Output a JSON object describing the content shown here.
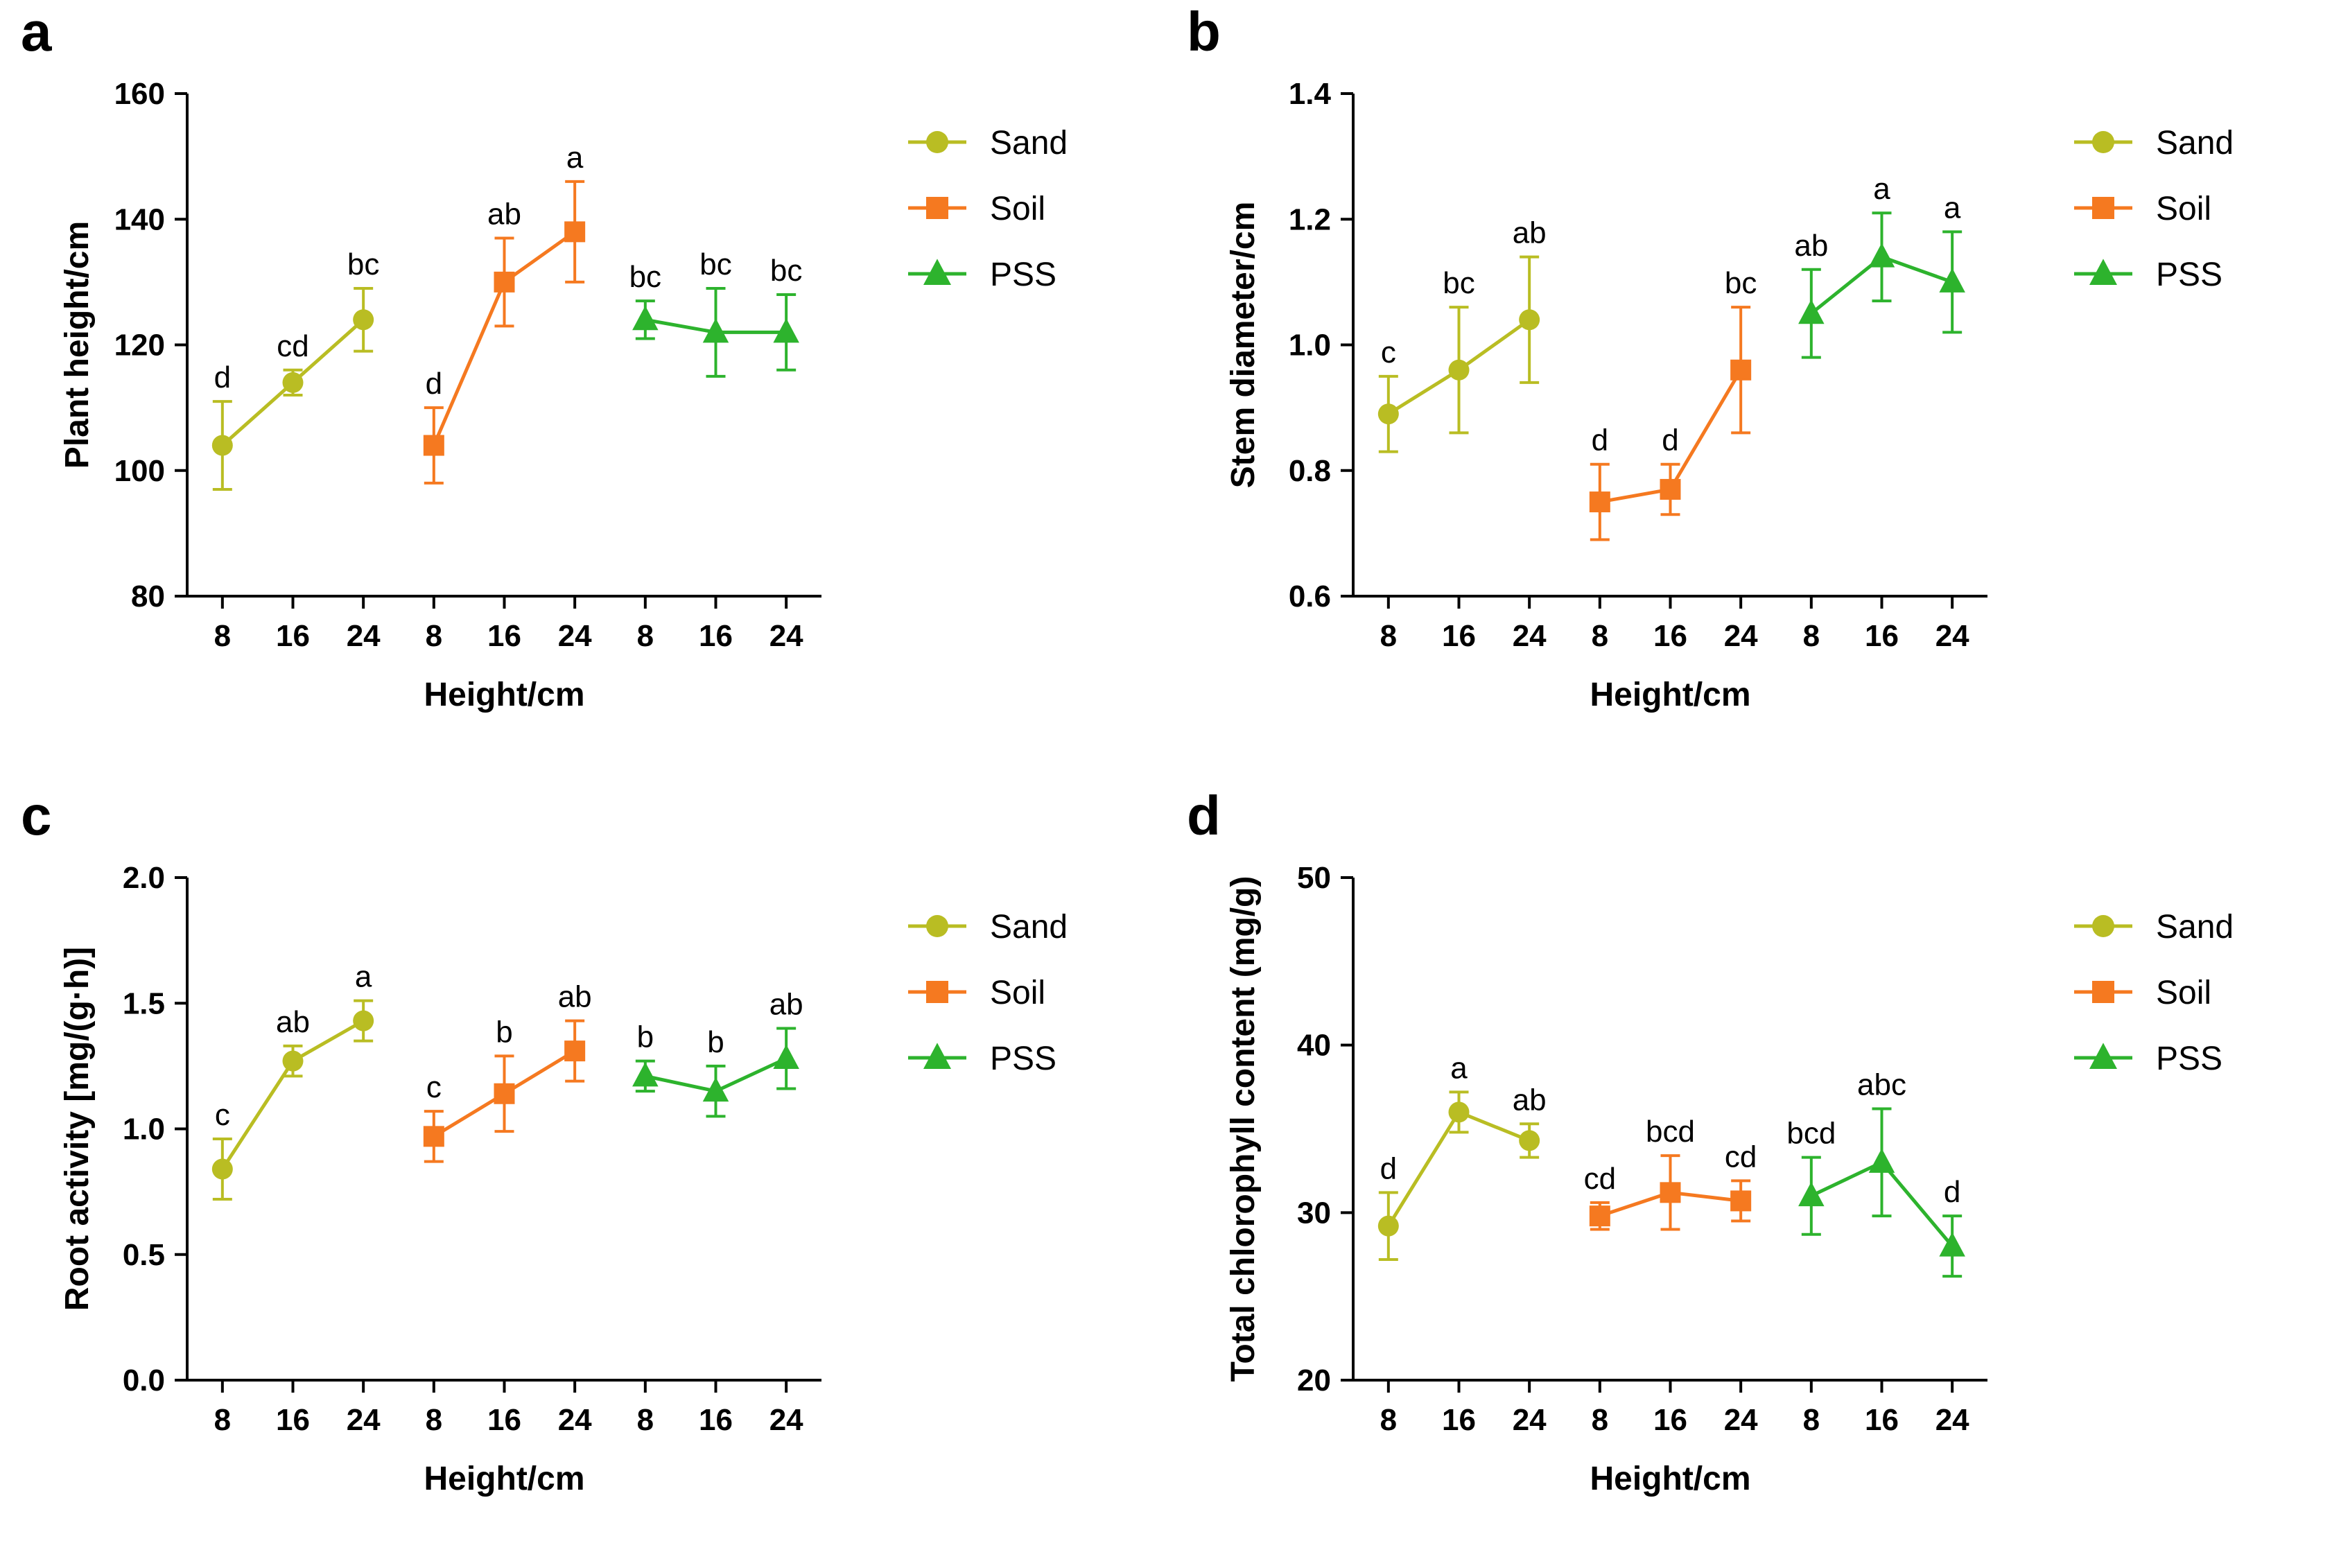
{
  "figure": {
    "background": "#ffffff",
    "legend_labels": [
      "Sand",
      "Soil",
      "PSS"
    ],
    "colors": {
      "sand": "#b9bd23",
      "soil": "#f57920",
      "pss": "#2db32d",
      "axis": "#000000"
    }
  },
  "chart_data": [
    {
      "type": "line",
      "panel_label": "a",
      "title": "",
      "xlabel": "Height/cm",
      "ylabel": "Plant height/cm",
      "ylim": [
        80,
        160
      ],
      "yticks": [
        "80",
        "100",
        "120",
        "140",
        "160"
      ],
      "categories": [
        "8",
        "16",
        "24",
        "8",
        "16",
        "24",
        "8",
        "16",
        "24"
      ],
      "legend_position": "right",
      "series": [
        {
          "name": "Sand",
          "color": "#b9bd23",
          "marker": "circle",
          "positions": [
            0,
            1,
            2
          ],
          "values": [
            104,
            114,
            124
          ],
          "errors": [
            7,
            2,
            5
          ],
          "sig": [
            "d",
            "cd",
            "bc"
          ]
        },
        {
          "name": "Soil",
          "color": "#f57920",
          "marker": "square",
          "positions": [
            3,
            4,
            5
          ],
          "values": [
            104,
            130,
            138
          ],
          "errors": [
            6,
            7,
            8
          ],
          "sig": [
            "d",
            "ab",
            "a"
          ]
        },
        {
          "name": "PSS",
          "color": "#2db32d",
          "marker": "triangle",
          "positions": [
            6,
            7,
            8
          ],
          "values": [
            124,
            122,
            122
          ],
          "errors": [
            3,
            7,
            6
          ],
          "sig": [
            "bc",
            "bc",
            "bc"
          ]
        }
      ]
    },
    {
      "type": "line",
      "panel_label": "b",
      "title": "",
      "xlabel": "Height/cm",
      "ylabel": "Stem diameter/cm",
      "ylim": [
        0.6,
        1.4
      ],
      "yticks": [
        "0.6",
        "0.8",
        "1.0",
        "1.2",
        "1.4"
      ],
      "categories": [
        "8",
        "16",
        "24",
        "8",
        "16",
        "24",
        "8",
        "16",
        "24"
      ],
      "legend_position": "right",
      "series": [
        {
          "name": "Sand",
          "color": "#b9bd23",
          "marker": "circle",
          "positions": [
            0,
            1,
            2
          ],
          "values": [
            0.89,
            0.96,
            1.04
          ],
          "errors": [
            0.06,
            0.1,
            0.1
          ],
          "sig": [
            "c",
            "bc",
            "ab"
          ]
        },
        {
          "name": "Soil",
          "color": "#f57920",
          "marker": "square",
          "positions": [
            3,
            4,
            5
          ],
          "values": [
            0.75,
            0.77,
            0.96
          ],
          "errors": [
            0.06,
            0.04,
            0.1
          ],
          "sig": [
            "d",
            "d",
            "bc"
          ]
        },
        {
          "name": "PSS",
          "color": "#2db32d",
          "marker": "triangle",
          "positions": [
            6,
            7,
            8
          ],
          "values": [
            1.05,
            1.14,
            1.1
          ],
          "errors": [
            0.07,
            0.07,
            0.08
          ],
          "sig": [
            "ab",
            "a",
            "a"
          ]
        }
      ]
    },
    {
      "type": "line",
      "panel_label": "c",
      "title": "",
      "xlabel": "Height/cm",
      "ylabel": "Root activity [mg/(g·h)]",
      "ylim": [
        0,
        2
      ],
      "yticks": [
        "0.0",
        "0.5",
        "1.0",
        "1.5",
        "2.0"
      ],
      "categories": [
        "8",
        "16",
        "24",
        "8",
        "16",
        "24",
        "8",
        "16",
        "24"
      ],
      "legend_position": "right",
      "series": [
        {
          "name": "Sand",
          "color": "#b9bd23",
          "marker": "circle",
          "positions": [
            0,
            1,
            2
          ],
          "values": [
            0.84,
            1.27,
            1.43
          ],
          "errors": [
            0.12,
            0.06,
            0.08
          ],
          "sig": [
            "c",
            "ab",
            "a"
          ]
        },
        {
          "name": "Soil",
          "color": "#f57920",
          "marker": "square",
          "positions": [
            3,
            4,
            5
          ],
          "values": [
            0.97,
            1.14,
            1.31
          ],
          "errors": [
            0.1,
            0.15,
            0.12
          ],
          "sig": [
            "c",
            "b",
            "ab"
          ]
        },
        {
          "name": "PSS",
          "color": "#2db32d",
          "marker": "triangle",
          "positions": [
            6,
            7,
            8
          ],
          "values": [
            1.21,
            1.15,
            1.28
          ],
          "errors": [
            0.06,
            0.1,
            0.12
          ],
          "sig": [
            "b",
            "b",
            "ab"
          ]
        }
      ]
    },
    {
      "type": "line",
      "panel_label": "d",
      "title": "",
      "xlabel": "Height/cm",
      "ylabel": "Total chlorophyll content (mg/g)",
      "ylim": [
        20,
        50
      ],
      "yticks": [
        "20",
        "30",
        "40",
        "50"
      ],
      "categories": [
        "8",
        "16",
        "24",
        "8",
        "16",
        "24",
        "8",
        "16",
        "24"
      ],
      "legend_position": "right",
      "series": [
        {
          "name": "Sand",
          "color": "#b9bd23",
          "marker": "circle",
          "positions": [
            0,
            1,
            2
          ],
          "values": [
            29.2,
            36.0,
            34.3
          ],
          "errors": [
            2.0,
            1.2,
            1.0
          ],
          "sig": [
            "d",
            "a",
            "ab"
          ]
        },
        {
          "name": "Soil",
          "color": "#f57920",
          "marker": "square",
          "positions": [
            3,
            4,
            5
          ],
          "values": [
            29.8,
            31.2,
            30.7
          ],
          "errors": [
            0.8,
            2.2,
            1.2
          ],
          "sig": [
            "cd",
            "bcd",
            "cd"
          ]
        },
        {
          "name": "PSS",
          "color": "#2db32d",
          "marker": "triangle",
          "positions": [
            6,
            7,
            8
          ],
          "values": [
            31.0,
            33.0,
            28.0
          ],
          "errors": [
            2.3,
            3.2,
            1.8
          ],
          "sig": [
            "bcd",
            "abc",
            "d"
          ]
        }
      ]
    }
  ]
}
